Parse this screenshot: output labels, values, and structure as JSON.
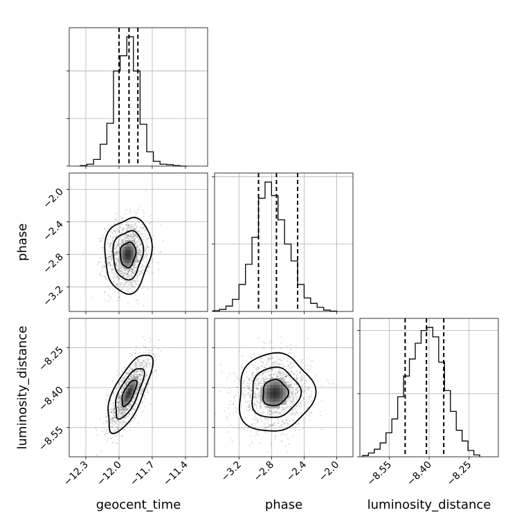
{
  "chart_data": {
    "type": "corner",
    "parameters": [
      "geocent_time",
      "phase",
      "luminosity_distance"
    ],
    "grid": true,
    "quantile_lines": "dashed",
    "axes": {
      "geocent_time": {
        "range": [
          -12.45,
          -11.2
        ],
        "ticks": [
          -12.3,
          -12.0,
          -11.7,
          -11.4
        ],
        "tick_labels": [
          "−12.3",
          "−12.0",
          "−11.7",
          "−11.4"
        ]
      },
      "phase": {
        "range": [
          -3.5,
          -1.8
        ],
        "ticks": [
          -3.2,
          -2.8,
          -2.4,
          -2.0
        ],
        "tick_labels": [
          "−3.2",
          "−2.8",
          "−2.4",
          "−2.0"
        ]
      },
      "luminosity_distance": {
        "range": [
          -8.66,
          -8.14
        ],
        "ticks": [
          -8.55,
          -8.4,
          -8.25
        ],
        "tick_labels": [
          "−8.55",
          "−8.40",
          "−8.25"
        ]
      }
    },
    "marginals": [
      {
        "param": "geocent_time",
        "quantiles": [
          -12.0,
          -11.91,
          -11.83
        ],
        "bin_edges": [
          -12.35,
          -12.29,
          -12.23,
          -12.17,
          -12.11,
          -12.05,
          -11.99,
          -11.93,
          -11.87,
          -11.81,
          -11.75,
          -11.69,
          -11.63,
          -11.57,
          -11.51,
          -11.45,
          -11.39
        ],
        "counts": [
          0.5,
          2,
          7,
          23,
          45,
          100,
          116,
          136,
          100,
          44,
          15,
          5,
          2,
          1.5,
          0.5,
          0
        ]
      },
      {
        "param": "phase",
        "quantiles": [
          -2.96,
          -2.74,
          -2.48
        ],
        "bin_edges": [
          -3.52,
          -3.44,
          -3.36,
          -3.28,
          -3.2,
          -3.12,
          -3.04,
          -2.96,
          -2.88,
          -2.8,
          -2.72,
          -2.64,
          -2.56,
          -2.48,
          -2.4,
          -2.32,
          -2.24,
          -2.16,
          -2.08,
          -2.0
        ],
        "counts": [
          1,
          3,
          8,
          18,
          40,
          70,
          110,
          168,
          192,
          172,
          136,
          100,
          75,
          40,
          20,
          12,
          6,
          2,
          0.5
        ]
      },
      {
        "param": "luminosity_distance",
        "quantiles": [
          -8.49,
          -8.41,
          -8.345
        ],
        "bin_edges": [
          -8.65,
          -8.628,
          -8.606,
          -8.584,
          -8.562,
          -8.54,
          -8.518,
          -8.496,
          -8.474,
          -8.452,
          -8.43,
          -8.408,
          -8.386,
          -8.364,
          -8.342,
          -8.32,
          -8.298,
          -8.276,
          -8.254,
          -8.232,
          -8.21
        ],
        "counts": [
          2,
          6,
          12,
          22,
          38,
          60,
          95,
          128,
          155,
          180,
          200,
          205,
          190,
          150,
          105,
          72,
          42,
          25,
          10,
          3
        ]
      }
    ],
    "joint": [
      {
        "x": "geocent_time",
        "y": "phase",
        "center": [
          -11.92,
          -2.8
        ],
        "spread": [
          0.1,
          0.22
        ],
        "corr": 0.1
      },
      {
        "x": "geocent_time",
        "y": "luminosity_distance",
        "center": [
          -11.91,
          -8.42
        ],
        "spread": [
          0.095,
          0.07
        ],
        "corr": 0.7
      },
      {
        "x": "phase",
        "y": "luminosity_distance",
        "center": [
          -2.76,
          -8.42
        ],
        "spread": [
          0.22,
          0.07
        ],
        "corr": 0.05
      }
    ]
  }
}
